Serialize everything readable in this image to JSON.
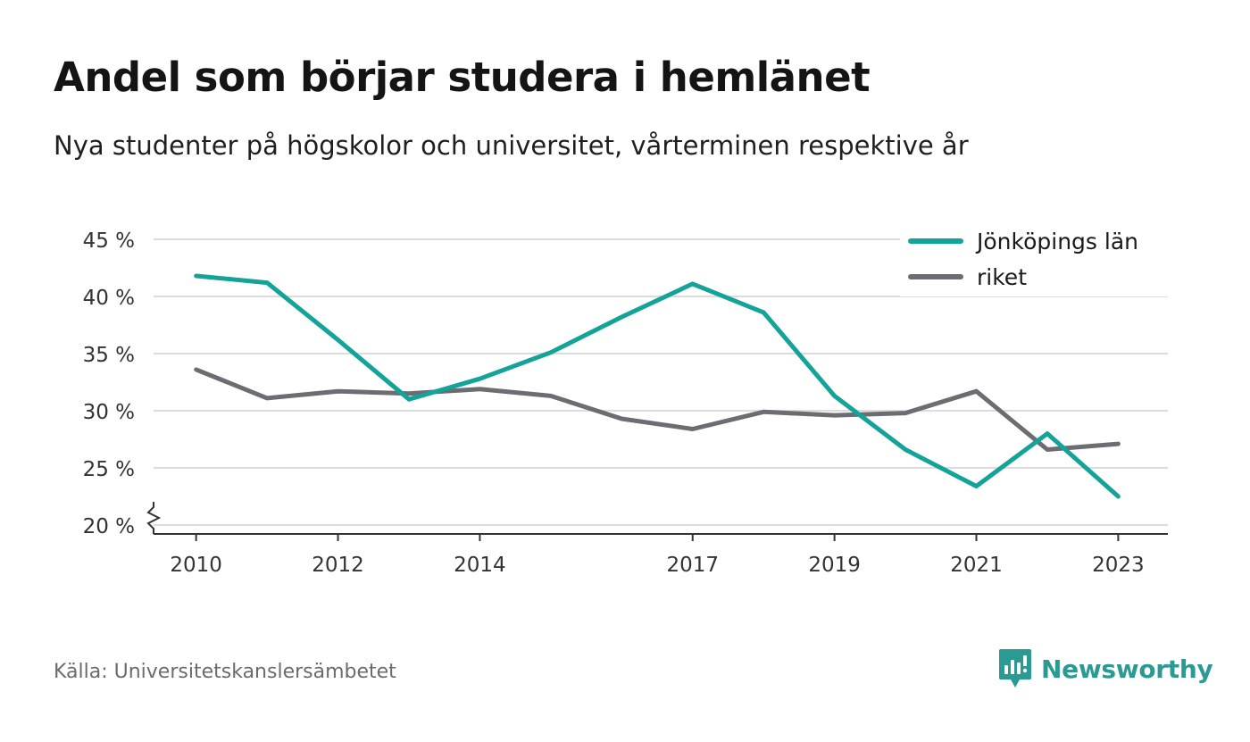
{
  "title": "Andel som börjar studera i hemlänet",
  "subtitle": "Nya studenter på högskolor och universitet, vårterminen respektive år",
  "source": "Källa: Universitetskanslersämbetet",
  "brand": {
    "name": "Newsworthy",
    "icon": "newsworthy-logo-icon",
    "color": "#2a9a92"
  },
  "chart_data": {
    "type": "line",
    "title": "Andel som börjar studera i hemlänet",
    "subtitle": "Nya studenter på högskolor och universitet, vårterminen respektive år",
    "xlabel": "",
    "ylabel": "",
    "x": [
      2010,
      2011,
      2012,
      2013,
      2014,
      2015,
      2016,
      2017,
      2018,
      2019,
      2020,
      2021,
      2022,
      2023
    ],
    "x_ticks": [
      "2010",
      "2012",
      "2014",
      "2017",
      "2019",
      "2021",
      "2023"
    ],
    "y_ticks": [
      "20 %",
      "25 %",
      "30 %",
      "35 %",
      "40 %",
      "45 %"
    ],
    "xlim": [
      2009.4,
      2023.7
    ],
    "ylim": [
      20,
      45
    ],
    "y_axis_break": true,
    "grid": "horizontal",
    "legend_position": "top-right",
    "series": [
      {
        "name": "Jönköpings län",
        "color": "#14a398",
        "values": [
          41.8,
          41.2,
          36.2,
          31.0,
          32.8,
          35.1,
          38.2,
          41.1,
          38.6,
          31.3,
          26.6,
          23.4,
          28.0,
          22.5
        ]
      },
      {
        "name": "riket",
        "color": "#6d6c72",
        "values": [
          33.6,
          31.1,
          31.7,
          31.5,
          31.9,
          31.3,
          29.3,
          28.4,
          29.9,
          29.6,
          29.8,
          31.7,
          26.6,
          27.1
        ]
      }
    ]
  }
}
